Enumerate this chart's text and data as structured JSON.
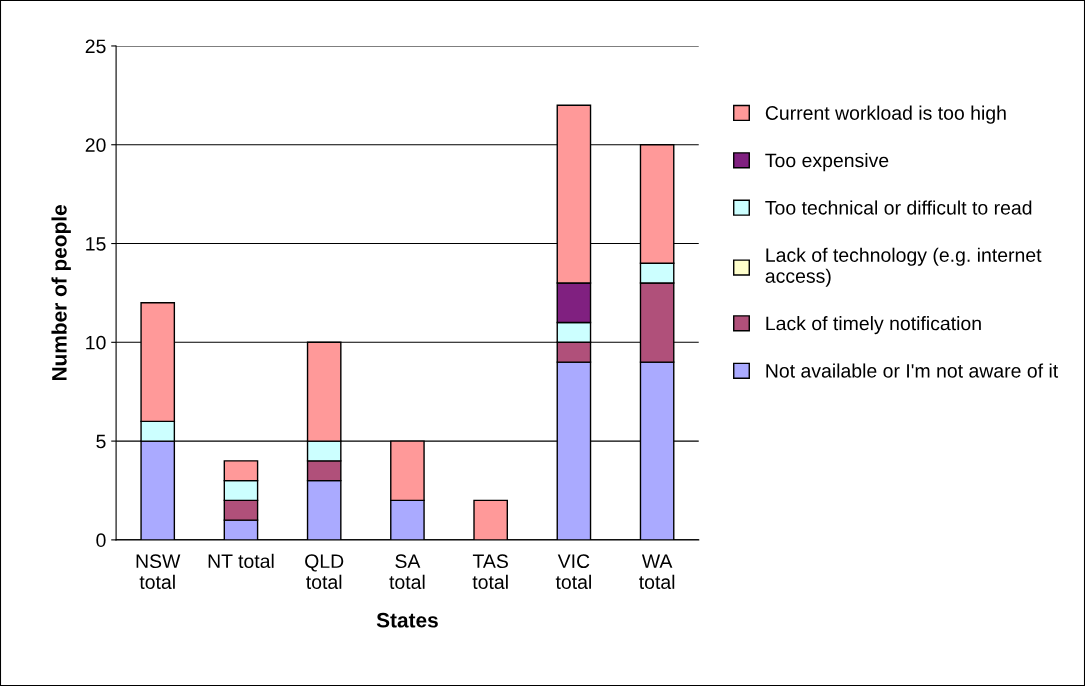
{
  "chart_data": {
    "type": "bar",
    "stacked": true,
    "xlabel": "States",
    "ylabel": "Number of people",
    "categories": [
      "NSW\ntotal",
      "NT total",
      "QLD\ntotal",
      "SA\ntotal",
      "TAS\ntotal",
      "VIC\ntotal",
      "WA\ntotal"
    ],
    "series": [
      {
        "name": "Not available or I'm not aware of it",
        "color": "#aaaaff",
        "values": [
          5,
          1,
          3,
          2,
          0,
          9,
          9
        ]
      },
      {
        "name": "Lack of timely notification",
        "color": "#b0507a",
        "values": [
          0,
          1,
          1,
          0,
          0,
          1,
          4
        ]
      },
      {
        "name": "Lack of technology (e.g. internet\naccess)",
        "color": "#ffffcc",
        "values": [
          0,
          0,
          0,
          0,
          0,
          0,
          0
        ]
      },
      {
        "name": "Too technical or difficult to read",
        "color": "#ccffff",
        "values": [
          1,
          1,
          1,
          0,
          0,
          1,
          1
        ]
      },
      {
        "name": "Too expensive",
        "color": "#802080",
        "values": [
          0,
          0,
          0,
          0,
          0,
          2,
          0
        ]
      },
      {
        "name": "Current workload is too high",
        "color": "#ff9999",
        "values": [
          6,
          1,
          5,
          3,
          2,
          9,
          6
        ]
      }
    ],
    "ylim": [
      0,
      25
    ],
    "yticks": [
      0,
      5,
      10,
      15,
      20,
      25
    ],
    "grid": "y",
    "legend": "right"
  }
}
